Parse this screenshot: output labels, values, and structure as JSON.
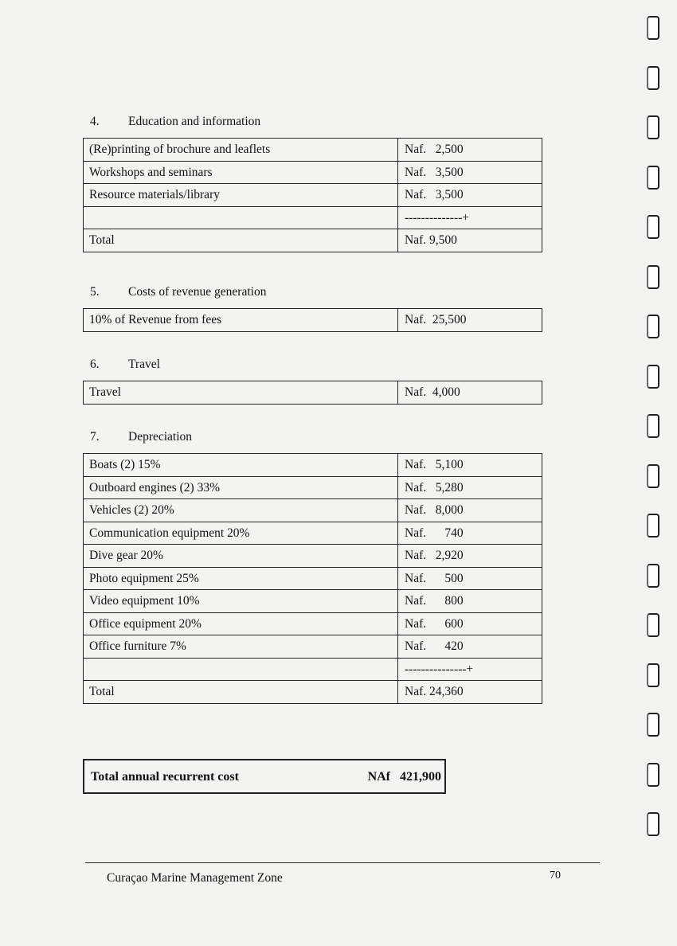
{
  "sections": [
    {
      "number": "4.",
      "title": "Education and information",
      "rows": [
        {
          "label": "(Re)printing of brochure and leaflets",
          "amount": "Naf.   2,500"
        },
        {
          "label": "Workshops and seminars",
          "amount": "Naf.   3,500"
        },
        {
          "label": "Resource materials/library",
          "amount": "Naf.   3,500"
        },
        {
          "label": "",
          "amount": "--------------+"
        },
        {
          "label": "Total",
          "amount": "Naf. 9,500"
        }
      ]
    },
    {
      "number": "5.",
      "title": "Costs of revenue generation",
      "rows": [
        {
          "label": "10% of Revenue from fees",
          "amount": "Naf.  25,500"
        }
      ]
    },
    {
      "number": "6.",
      "title": "Travel",
      "rows": [
        {
          "label": "Travel",
          "amount": "Naf.  4,000"
        }
      ]
    },
    {
      "number": "7.",
      "title": "Depreciation",
      "rows": [
        {
          "label": "Boats (2) 15%",
          "amount": "Naf.   5,100"
        },
        {
          "label": "Outboard engines (2) 33%",
          "amount": "Naf.   5,280"
        },
        {
          "label": "Vehicles (2) 20%",
          "amount": "Naf.   8,000"
        },
        {
          "label": "Communication equipment 20%",
          "amount": "Naf.      740"
        },
        {
          "label": "Dive gear 20%",
          "amount": "Naf.   2,920"
        },
        {
          "label": "Photo equipment 25%",
          "amount": "Naf.      500"
        },
        {
          "label": "Video equipment 10%",
          "amount": "Naf.      800"
        },
        {
          "label": "Office equipment 20%",
          "amount": "Naf.      600"
        },
        {
          "label": "Office furniture 7%",
          "amount": "Naf.      420"
        },
        {
          "label": "",
          "amount": "---------------+"
        },
        {
          "label": "Total",
          "amount": "Naf. 24,360"
        }
      ]
    }
  ],
  "grand_total": {
    "label": "Total annual recurrent cost",
    "amount": "NAf   421,900"
  },
  "footer": {
    "title": "Curaçao Marine Management Zone",
    "page": "70"
  }
}
